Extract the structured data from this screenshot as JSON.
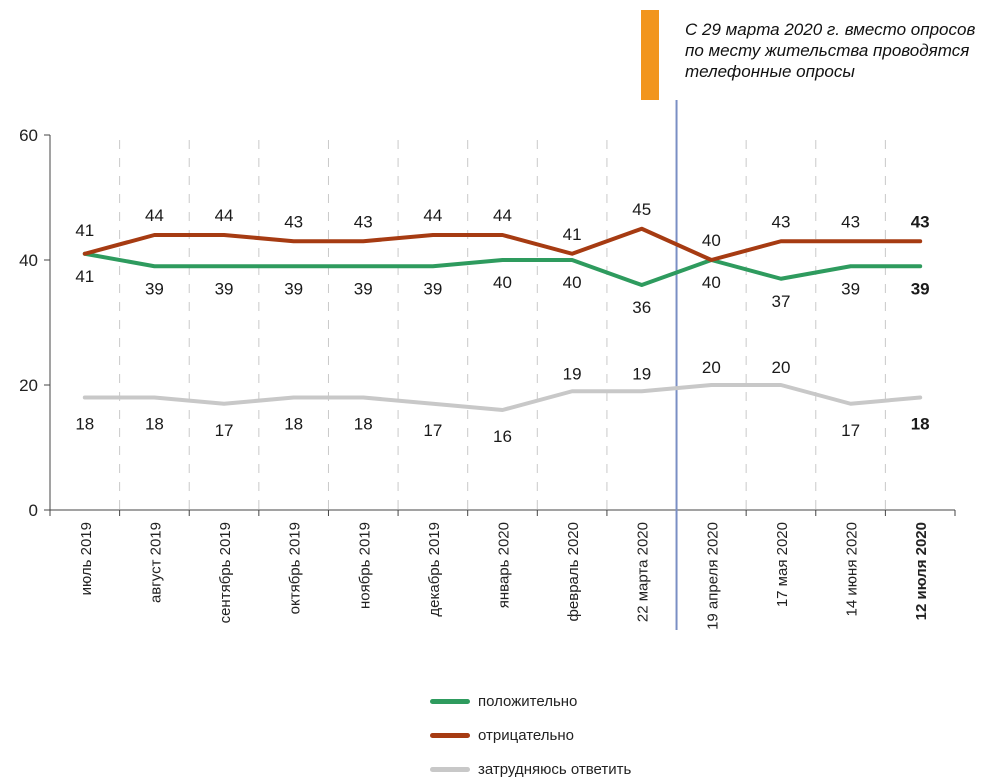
{
  "chart_data": {
    "type": "line",
    "categories": [
      "июль 2019",
      "август 2019",
      "сентябрь 2019",
      "октябрь 2019",
      "ноябрь 2019",
      "декабрь 2019",
      "январь 2020",
      "февраль 2020",
      "22 марта 2020",
      "19 апреля 2020",
      "17 мая 2020",
      "14 июня 2020",
      "12 июля 2020"
    ],
    "series": [
      {
        "name": "положительно",
        "color": "#2e9b5e",
        "values": [
          41,
          39,
          39,
          39,
          39,
          39,
          40,
          40,
          36,
          40,
          37,
          39,
          39
        ]
      },
      {
        "name": "отрицательно",
        "color": "#a63b12",
        "values": [
          41,
          44,
          44,
          43,
          43,
          44,
          44,
          41,
          45,
          40,
          43,
          43,
          43
        ]
      },
      {
        "name": "затрудняюсь ответить",
        "color": "#c8c8c8",
        "values": [
          18,
          18,
          17,
          18,
          18,
          17,
          16,
          19,
          19,
          20,
          20,
          17,
          18
        ]
      }
    ],
    "yticks": [
      0,
      20,
      40,
      60
    ],
    "ylim": [
      0,
      60
    ],
    "grid": "vertical-dashed",
    "legend_position": "bottom",
    "last_category_bold": true
  },
  "annotation": {
    "text": "С 29 марта 2020 г. вместо опросов по месту жительства проводятся телефонные опросы",
    "accent_color": "#f2951c",
    "divider_color": "#7a8fc4"
  }
}
